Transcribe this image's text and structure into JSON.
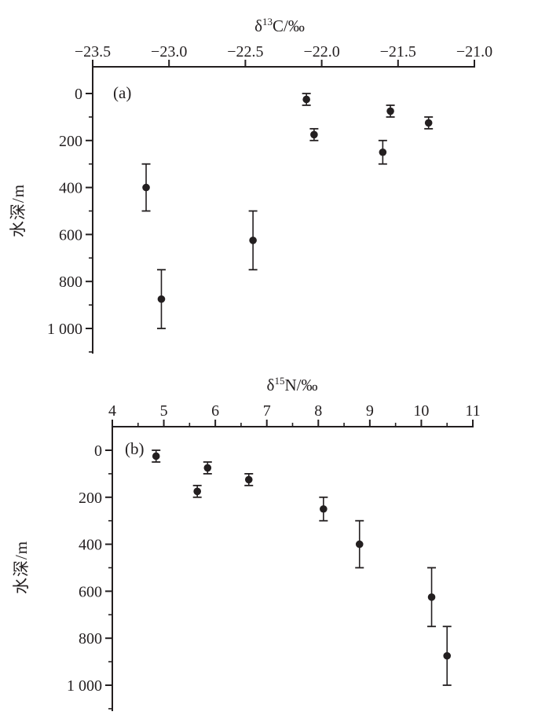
{
  "figure": {
    "background": "#ffffff",
    "ink_color": "#231f20"
  },
  "chart_data": [
    {
      "type": "scatter",
      "panel_label": "(a)",
      "title": {
        "prefix": "δ",
        "sup": "13",
        "suffix": "C/‰"
      },
      "xlabel": "δ13C/‰",
      "ylabel": "水深/m",
      "x_axis_position": "top",
      "y_axis_position": "left",
      "y_inverted": true,
      "grid": false,
      "x_range": [
        -23.5,
        -21.0
      ],
      "x_major_ticks": [
        -23.5,
        -23.0,
        -22.5,
        -22.0,
        -21.5,
        -21.0
      ],
      "x_tick_labels": [
        "−23.5",
        "−23.0",
        "−22.5",
        "−22.0",
        "−21.5",
        "−21.0"
      ],
      "x_minor_ticks": [],
      "y_range": [
        0,
        1100
      ],
      "y_major_ticks": [
        0,
        200,
        400,
        600,
        800,
        1000
      ],
      "y_tick_labels": [
        "0",
        "200",
        "400",
        "600",
        "800",
        "1 000"
      ],
      "y_minor_ticks": [
        100,
        300,
        500,
        700,
        900,
        1100
      ],
      "points": [
        {
          "x": -22.1,
          "depth": 25,
          "depth_min": 0,
          "depth_max": 50
        },
        {
          "x": -21.55,
          "depth": 75,
          "depth_min": 50,
          "depth_max": 100
        },
        {
          "x": -21.3,
          "depth": 125,
          "depth_min": 100,
          "depth_max": 150
        },
        {
          "x": -22.05,
          "depth": 175,
          "depth_min": 150,
          "depth_max": 200
        },
        {
          "x": -21.6,
          "depth": 250,
          "depth_min": 200,
          "depth_max": 300
        },
        {
          "x": -23.15,
          "depth": 400,
          "depth_min": 300,
          "depth_max": 500
        },
        {
          "x": -22.45,
          "depth": 625,
          "depth_min": 500,
          "depth_max": 750
        },
        {
          "x": -23.05,
          "depth": 875,
          "depth_min": 750,
          "depth_max": 1000
        }
      ]
    },
    {
      "type": "scatter",
      "panel_label": "(b)",
      "title": {
        "prefix": "δ",
        "sup": "15",
        "suffix": "N/‰"
      },
      "xlabel": "δ15N/‰",
      "ylabel": "水深/m",
      "x_axis_position": "top",
      "y_axis_position": "left",
      "y_inverted": true,
      "grid": false,
      "x_range": [
        4,
        11
      ],
      "x_major_ticks": [
        4,
        5,
        6,
        7,
        8,
        9,
        10,
        11
      ],
      "x_tick_labels": [
        "4",
        "5",
        "6",
        "7",
        "8",
        "9",
        "10",
        "11"
      ],
      "x_minor_ticks": [
        4.5,
        5.5,
        6.5,
        7.5,
        8.5,
        9.5,
        10.5
      ],
      "y_range": [
        0,
        1100
      ],
      "y_major_ticks": [
        0,
        200,
        400,
        600,
        800,
        1000
      ],
      "y_tick_labels": [
        "0",
        "200",
        "400",
        "600",
        "800",
        "1 000"
      ],
      "y_minor_ticks": [
        100,
        300,
        500,
        700,
        900,
        1100
      ],
      "points": [
        {
          "x": 4.85,
          "depth": 25,
          "depth_min": 0,
          "depth_max": 50
        },
        {
          "x": 5.85,
          "depth": 75,
          "depth_min": 50,
          "depth_max": 100
        },
        {
          "x": 6.65,
          "depth": 125,
          "depth_min": 100,
          "depth_max": 150
        },
        {
          "x": 5.65,
          "depth": 175,
          "depth_min": 150,
          "depth_max": 200
        },
        {
          "x": 8.1,
          "depth": 250,
          "depth_min": 200,
          "depth_max": 300
        },
        {
          "x": 8.8,
          "depth": 400,
          "depth_min": 300,
          "depth_max": 500
        },
        {
          "x": 10.2,
          "depth": 625,
          "depth_min": 500,
          "depth_max": 750
        },
        {
          "x": 10.5,
          "depth": 875,
          "depth_min": 750,
          "depth_max": 1000
        }
      ]
    }
  ]
}
